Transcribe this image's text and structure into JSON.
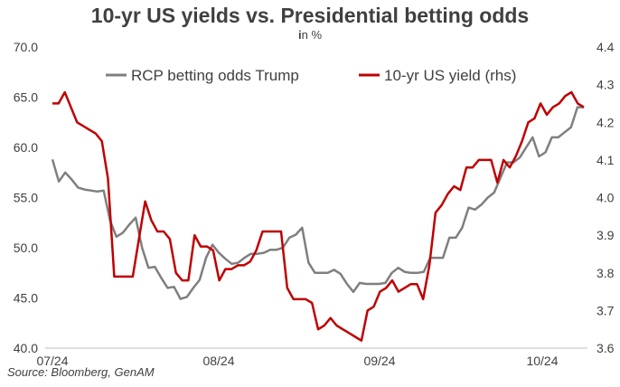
{
  "chart_data": {
    "type": "line",
    "title": "10-yr US yields vs. Presidential betting odds",
    "subtitle_prefix": "i",
    "subtitle_rest": "n %",
    "source": "Source: Bloomberg, GenAM",
    "x_ticks": [
      "07/24",
      "08/24",
      "09/24",
      "10/24"
    ],
    "y_left": {
      "min": 40,
      "max": 70,
      "ticks": [
        "40.0",
        "45.0",
        "50.0",
        "55.0",
        "60.0",
        "65.0",
        "70.0"
      ]
    },
    "y_right": {
      "min": 3.6,
      "max": 4.4,
      "ticks": [
        "3.6",
        "3.7",
        "3.8",
        "3.9",
        "4.0",
        "4.1",
        "4.2",
        "4.3",
        "4.4"
      ]
    },
    "legend_position": "top",
    "series": [
      {
        "name": "RCP betting odds Trump",
        "axis": "left",
        "color": "#7f7f7f",
        "values": [
          58.8,
          56.6,
          57.5,
          56.8,
          56.0,
          55.8,
          55.7,
          55.6,
          55.7,
          52.7,
          51.1,
          51.5,
          52.3,
          53.0,
          50.0,
          48.0,
          48.1,
          47.0,
          46.0,
          46.1,
          44.9,
          45.1,
          46.0,
          46.8,
          49.0,
          50.3,
          49.5,
          48.9,
          48.4,
          48.5,
          49.0,
          49.4,
          49.4,
          49.5,
          49.8,
          49.8,
          50.0,
          51.0,
          51.3,
          52.0,
          48.5,
          47.5,
          47.5,
          47.5,
          47.8,
          47.4,
          46.4,
          45.6,
          46.5,
          46.4,
          46.4,
          46.4,
          46.5,
          47.5,
          48.0,
          47.6,
          47.5,
          47.5,
          47.6,
          49.0,
          49.0,
          49.0,
          51.0,
          51.0,
          52.0,
          54.0,
          53.8,
          54.3,
          55.0,
          55.5,
          57.0,
          58.5,
          58.5,
          59.0,
          60.0,
          61.0,
          59.1,
          59.5,
          61.0,
          61.0,
          61.5,
          62.0,
          64.0,
          64.0
        ]
      },
      {
        "name": "10-yr US yield (rhs)",
        "axis": "right",
        "color": "#c00000",
        "values": [
          4.25,
          4.25,
          4.28,
          4.24,
          4.2,
          4.19,
          4.18,
          4.17,
          4.15,
          4.05,
          3.79,
          3.79,
          3.79,
          3.79,
          3.89,
          3.99,
          3.94,
          3.91,
          3.91,
          3.89,
          3.8,
          3.78,
          3.78,
          3.9,
          3.87,
          3.87,
          3.86,
          3.78,
          3.81,
          3.81,
          3.82,
          3.82,
          3.83,
          3.86,
          3.91,
          3.91,
          3.91,
          3.91,
          3.76,
          3.73,
          3.73,
          3.73,
          3.72,
          3.65,
          3.66,
          3.68,
          3.66,
          3.65,
          3.64,
          3.63,
          3.62,
          3.7,
          3.71,
          3.75,
          3.76,
          3.78,
          3.75,
          3.76,
          3.77,
          3.77,
          3.73,
          3.82,
          3.96,
          3.98,
          4.01,
          4.03,
          4.02,
          4.08,
          4.08,
          4.1,
          4.1,
          4.1,
          4.04,
          4.1,
          4.08,
          4.11,
          4.15,
          4.2,
          4.21,
          4.25,
          4.22,
          4.24,
          4.25,
          4.27,
          4.28,
          4.25,
          4.24
        ]
      }
    ]
  }
}
